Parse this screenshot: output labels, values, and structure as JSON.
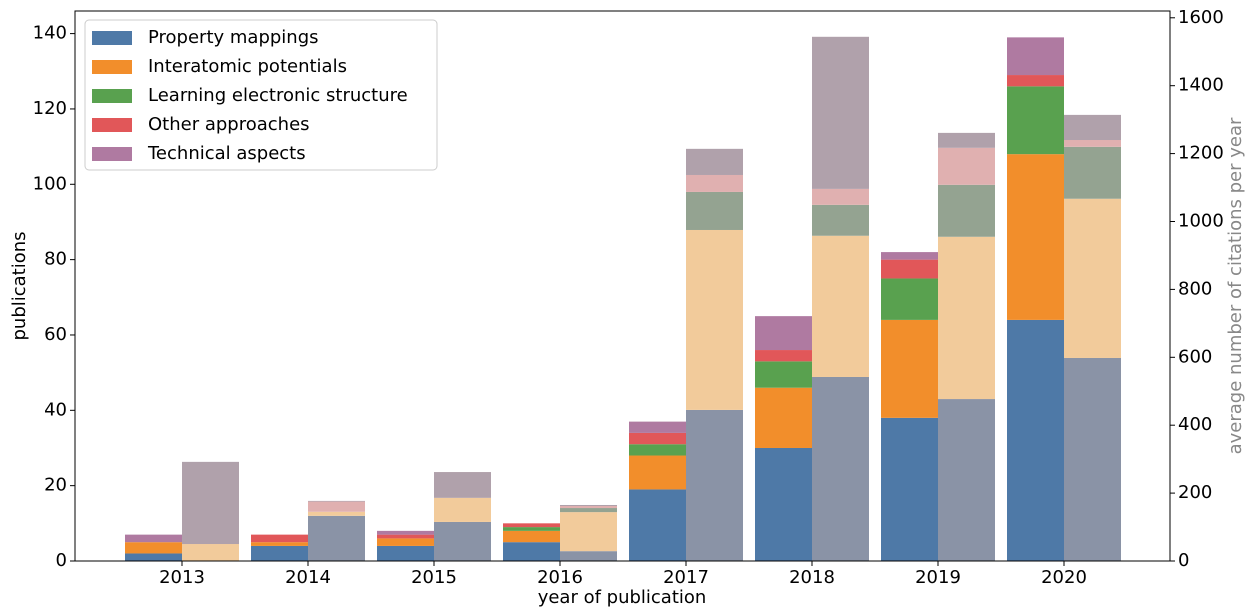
{
  "chart_data": {
    "type": "bar",
    "categories": [
      "2013",
      "2014",
      "2015",
      "2016",
      "2017",
      "2018",
      "2019",
      "2020"
    ],
    "xlabel": "year of publication",
    "ylabel": "publications",
    "y2label": "average number of citations per year",
    "ylim": [
      0,
      146
    ],
    "yticks": [
      0,
      20,
      40,
      60,
      80,
      100,
      120,
      140
    ],
    "y2lim": [
      0,
      1620
    ],
    "y2ticks": [
      0,
      200,
      400,
      600,
      800,
      1000,
      1200,
      1400,
      1600
    ],
    "legend": "upper left",
    "series": [
      {
        "name": "Property mappings",
        "color": "#4e79a7",
        "citation_color": "#8a93a6",
        "values": [
          2,
          4,
          4,
          5,
          19,
          30,
          38,
          64
        ],
        "citations": [
          0,
          133,
          115,
          29,
          445,
          542,
          477,
          598
        ]
      },
      {
        "name": "Interatomic potentials",
        "color": "#f28e2b",
        "citation_color": "#f2cb9b",
        "values": [
          3,
          1,
          2,
          3,
          9,
          16,
          26,
          44
        ],
        "citations": [
          50,
          12,
          71,
          115,
          530,
          416,
          478,
          469
        ]
      },
      {
        "name": "Learning electronic structure",
        "color": "#59a14f",
        "citation_color": "#94a391",
        "values": [
          0,
          0,
          0,
          1,
          3,
          7,
          11,
          18
        ],
        "citations": [
          0,
          0,
          0,
          12,
          112,
          91,
          153,
          153
        ]
      },
      {
        "name": "Other approaches",
        "color": "#e15759",
        "citation_color": "#e0b0b0",
        "values": [
          0,
          2,
          1,
          1,
          3,
          3,
          5,
          3
        ],
        "citations": [
          0,
          30,
          0,
          6,
          50,
          47,
          109,
          20
        ]
      },
      {
        "name": "Technical aspects",
        "color": "#af7aa1",
        "citation_color": "#b0a1ab",
        "values": [
          2,
          0,
          1,
          0,
          3,
          9,
          2,
          10
        ],
        "citations": [
          242,
          2,
          76,
          3,
          77,
          448,
          44,
          74
        ]
      }
    ]
  }
}
